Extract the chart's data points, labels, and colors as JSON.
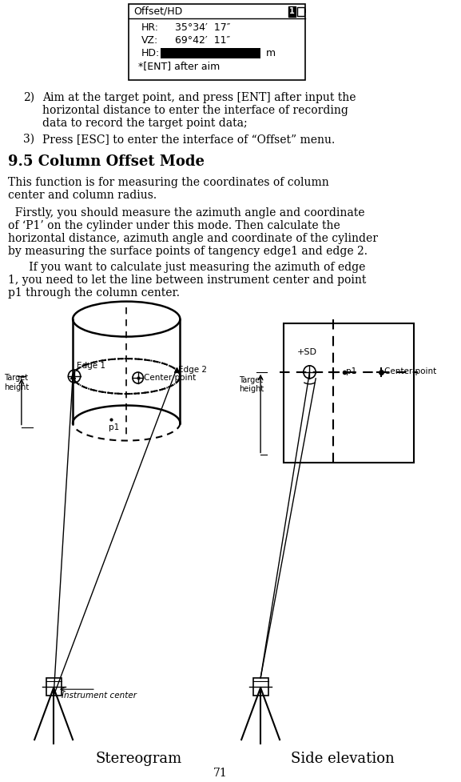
{
  "page_number": "71",
  "bg_color": "#ffffff",
  "text_color": "#000000",
  "screen_title": "Offset/HD",
  "screen_lines": [
    {
      "label": "HR:",
      "value": "35°34′  17″"
    },
    {
      "label": "VZ:",
      "value": "69°42′  11″"
    },
    {
      "label": "HD:",
      "value": "",
      "has_black_box": true,
      "suffix": " m"
    },
    {
      "label": "*[ENT] after aim",
      "value": ""
    }
  ],
  "item2": "Aim at the target point, and press [ENT] after input the\nhorizontal distance to enter the interface of recording\ndata to record the target point data;",
  "item3": "Press [ESC] to enter the interface of “Offset” menu.",
  "section_title": "9.5 Column Offset Mode",
  "para1": "This function is for measuring the coordinates of column\ncenter and column radius.",
  "para2": "  Firstly, you should measure the azimuth angle and coordinate\nof ‘P1’ on the cylinder under this mode. Then calculate the\nhorizontal distance, azimuth angle and coordinate of the cylinder\nby measuring the surface points of tangency edge1 and edge 2.",
  "para3": "      If you want to calculate just measuring the azimuth of edge\n1, you need to let the line between instrument center and point\np1 through the column center.",
  "stereo_label": "Stereogram",
  "side_label": "Side elevation",
  "edge1_label": "Edge 1",
  "edge2_label": "Edge 2",
  "center_point_label": "Center point",
  "p1_label": "p1",
  "target_height_label": "Target\nheight",
  "instrument_center_label": "Instrument center",
  "sd_label": "+SD"
}
